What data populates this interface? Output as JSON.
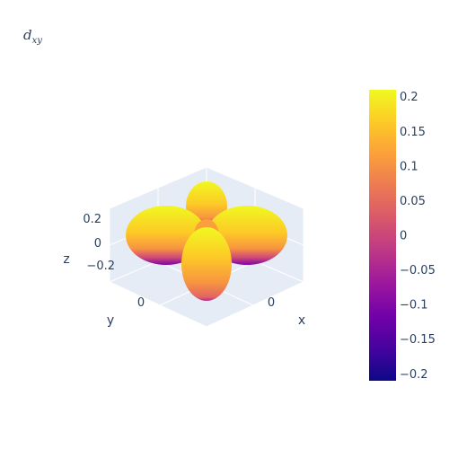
{
  "title": {
    "main": "d",
    "sub": "xy"
  },
  "chart_data": {
    "type": "surface",
    "title": "d_xy",
    "scene": {
      "xaxis": {
        "label": "x",
        "ticks": [
          {
            "value": 0,
            "label": "0"
          }
        ]
      },
      "yaxis": {
        "label": "y",
        "ticks": [
          {
            "value": 0,
            "label": "0"
          }
        ]
      },
      "zaxis": {
        "label": "z",
        "ticks": [
          {
            "value": 0.2,
            "label": "0.2"
          },
          {
            "value": 0,
            "label": "0"
          },
          {
            "value": -0.2,
            "label": "−0.2"
          }
        ]
      }
    },
    "colorbar": {
      "range": [
        -0.21,
        0.21
      ],
      "colorscale": [
        "#0d0887",
        "#46039f",
        "#7201a8",
        "#9c179e",
        "#bd3786",
        "#d8576b",
        "#ed7953",
        "#fb9f3a",
        "#fdca26",
        "#f0f921"
      ],
      "ticks": [
        {
          "value": 0.2,
          "label": "0.2"
        },
        {
          "value": 0.15,
          "label": "0.15"
        },
        {
          "value": 0.1,
          "label": "0.1"
        },
        {
          "value": 0.05,
          "label": "0.05"
        },
        {
          "value": 0,
          "label": "0"
        },
        {
          "value": -0.05,
          "label": "−0.05"
        },
        {
          "value": -0.1,
          "label": "−0.1"
        },
        {
          "value": -0.15,
          "label": "−0.15"
        },
        {
          "value": -0.2,
          "label": "−0.2"
        }
      ]
    },
    "lobes": [
      "left",
      "right",
      "back",
      "front"
    ]
  }
}
